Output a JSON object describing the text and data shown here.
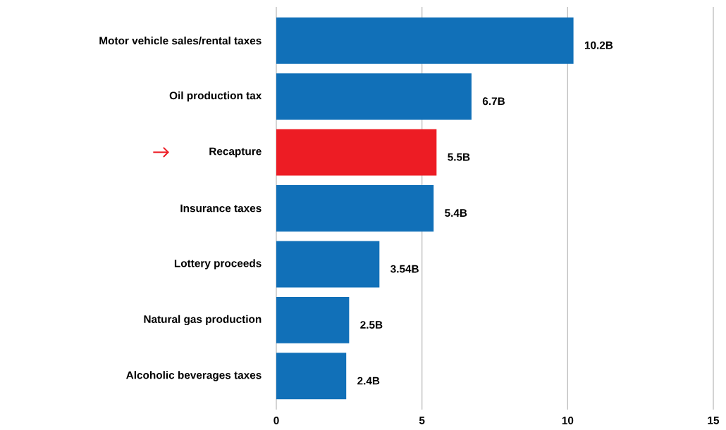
{
  "chart_data": {
    "type": "bar",
    "orientation": "horizontal",
    "categories": [
      "Motor vehicle sales/rental taxes",
      "Oil production tax",
      "Recapture",
      "Insurance taxes",
      "Lottery proceeds",
      "Natural gas production",
      "Alcoholic beverages taxes"
    ],
    "values": [
      10.2,
      6.7,
      5.5,
      5.4,
      3.54,
      2.5,
      2.4
    ],
    "value_labels": [
      "10.2B",
      "6.7B",
      "5.5B",
      "5.4B",
      "3.54B",
      "2.5B",
      "2.4B"
    ],
    "colors": [
      "#1170b8",
      "#1170b8",
      "#ed1c24",
      "#1170b8",
      "#1170b8",
      "#1170b8",
      "#1170b8"
    ],
    "xlim": [
      0,
      15
    ],
    "xticks": [
      0,
      5,
      10,
      15
    ],
    "grid": "x"
  }
}
